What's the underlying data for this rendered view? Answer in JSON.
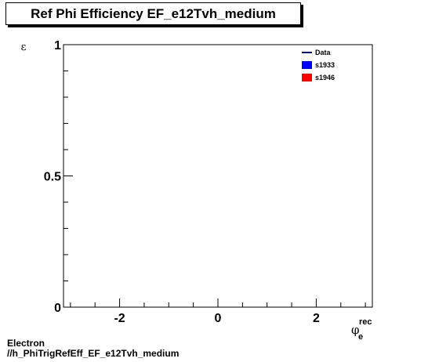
{
  "title": "Ref Phi Efficiency EF_e12Tvh_medium",
  "footer": {
    "line1": "Electron",
    "line2": "//h_PhiTrigRefEff_EF_e12Tvh_medium"
  },
  "chart_data": {
    "type": "scatter",
    "title": "Ref Phi Efficiency EF_e12Tvh_medium",
    "ylabel": "ε",
    "xlabel_main": "φ",
    "xlabel_sup": "rec",
    "xlabel_sub": "e",
    "xlim": [
      -3.14159,
      3.14159
    ],
    "ylim": [
      0,
      1
    ],
    "xticks": [
      -2,
      0,
      2
    ],
    "xtick_labels": [
      "-2",
      "0",
      "2"
    ],
    "yticks": [
      0,
      0.5,
      1
    ],
    "ytick_labels": [
      "0",
      "0.5",
      "1"
    ],
    "grid": false,
    "legend_placement": "top-right",
    "series": [
      {
        "name": "Data",
        "color": "#00007f",
        "marker": "line",
        "x": [],
        "y": []
      },
      {
        "name": "s1933",
        "color": "#0000ff",
        "marker": "box",
        "x": [],
        "y": []
      },
      {
        "name": "s1946",
        "color": "#ff0000",
        "marker": "box",
        "x": [],
        "y": []
      }
    ]
  }
}
